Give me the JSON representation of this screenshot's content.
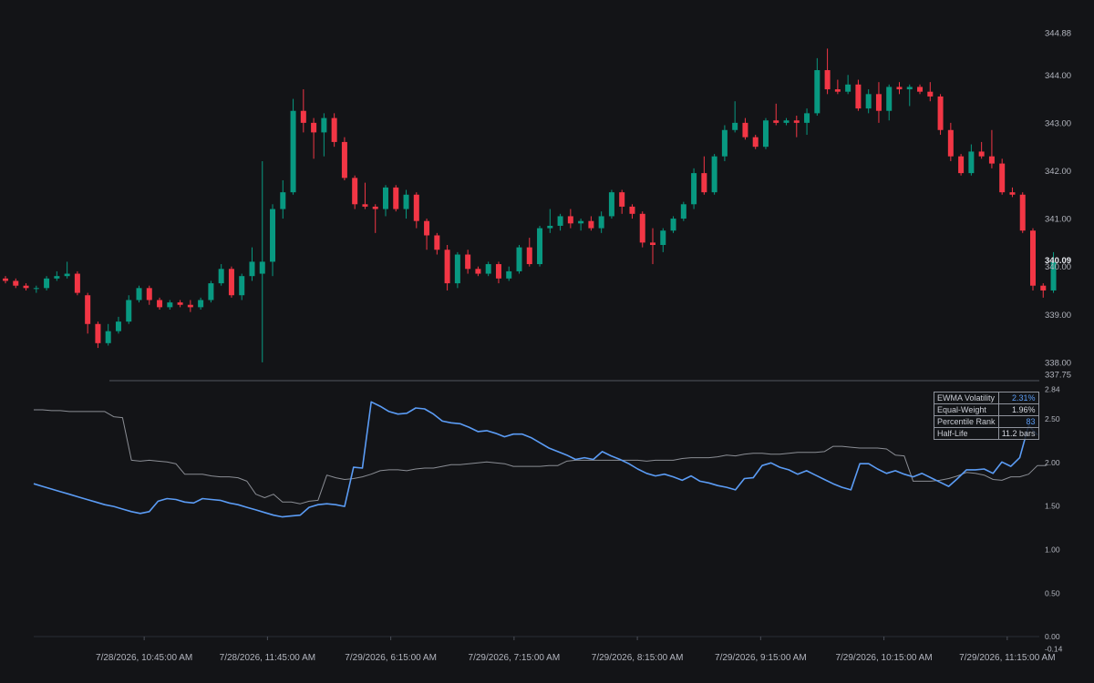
{
  "colors": {
    "background": "#131417",
    "up": "#089981",
    "down": "#f23645",
    "ewma": "#5b9cf5",
    "equal_weight": "#8a8d94",
    "separator": "#3a3e47",
    "text": "#b2b5be"
  },
  "stats": {
    "rows": [
      {
        "label": "EWMA Volatility",
        "value": "2.31%",
        "value_color": "#5b9cf5"
      },
      {
        "label": "Equal-Weight",
        "value": "1.96%",
        "value_color": "#d1d4dc"
      },
      {
        "label": "Percentile Rank",
        "value": "83",
        "value_color": "#5b9cf5"
      },
      {
        "label": "Half-Life",
        "value": "11.2 bars",
        "value_color": "#d1d4dc"
      }
    ]
  },
  "chart_data": [
    {
      "type": "candlestick",
      "ylim": [
        337.75,
        344.88
      ],
      "yticks": [
        "344.88",
        "344.00",
        "343.00",
        "342.00",
        "341.00",
        "340.00",
        "339.00",
        "338.00",
        "337.75"
      ],
      "last_price": "340.09",
      "candles": [
        [
          339.75,
          339.8,
          339.65,
          339.7
        ],
        [
          339.7,
          339.75,
          339.55,
          339.6
        ],
        [
          339.6,
          339.65,
          339.5,
          339.55
        ],
        [
          339.55,
          339.6,
          339.45,
          339.55
        ],
        [
          339.55,
          339.8,
          339.5,
          339.75
        ],
        [
          339.75,
          339.9,
          339.7,
          339.8
        ],
        [
          339.8,
          340.1,
          339.75,
          339.85
        ],
        [
          339.85,
          339.9,
          339.4,
          339.45
        ],
        [
          339.4,
          339.45,
          338.6,
          338.8
        ],
        [
          338.8,
          338.85,
          338.3,
          338.4
        ],
        [
          338.4,
          338.8,
          338.35,
          338.65
        ],
        [
          338.65,
          338.95,
          338.6,
          338.85
        ],
        [
          338.85,
          339.4,
          338.8,
          339.3
        ],
        [
          339.3,
          339.6,
          339.25,
          339.55
        ],
        [
          339.55,
          339.6,
          339.2,
          339.3
        ],
        [
          339.3,
          339.35,
          339.1,
          339.15
        ],
        [
          339.15,
          339.3,
          339.1,
          339.25
        ],
        [
          339.25,
          339.3,
          339.15,
          339.2
        ],
        [
          339.2,
          339.3,
          339.05,
          339.15
        ],
        [
          339.15,
          339.35,
          339.1,
          339.3
        ],
        [
          339.3,
          339.7,
          339.25,
          339.65
        ],
        [
          339.65,
          340.05,
          339.6,
          339.95
        ],
        [
          339.95,
          340.0,
          339.35,
          339.4
        ],
        [
          339.4,
          339.85,
          339.3,
          339.8
        ],
        [
          339.8,
          340.4,
          339.7,
          340.1
        ],
        [
          339.85,
          342.2,
          338.0,
          340.1
        ],
        [
          340.1,
          341.3,
          339.8,
          341.2
        ],
        [
          341.2,
          341.8,
          341.0,
          341.55
        ],
        [
          341.55,
          343.5,
          341.5,
          343.25
        ],
        [
          343.25,
          343.7,
          342.8,
          343.0
        ],
        [
          343.0,
          343.1,
          342.25,
          342.8
        ],
        [
          342.8,
          343.2,
          342.3,
          343.1
        ],
        [
          343.1,
          343.2,
          342.5,
          342.6
        ],
        [
          342.6,
          342.7,
          341.8,
          341.85
        ],
        [
          341.85,
          341.9,
          341.2,
          341.3
        ],
        [
          341.3,
          341.75,
          341.2,
          341.25
        ],
        [
          341.25,
          341.3,
          340.7,
          341.2
        ],
        [
          341.2,
          341.7,
          341.05,
          341.65
        ],
        [
          341.65,
          341.7,
          341.15,
          341.2
        ],
        [
          341.2,
          341.6,
          341.0,
          341.5
        ],
        [
          341.5,
          341.55,
          340.8,
          340.95
        ],
        [
          340.95,
          341.0,
          340.35,
          340.65
        ],
        [
          340.65,
          340.7,
          340.25,
          340.35
        ],
        [
          340.35,
          340.45,
          339.5,
          339.65
        ],
        [
          339.65,
          340.3,
          339.55,
          340.25
        ],
        [
          340.25,
          340.35,
          339.85,
          339.95
        ],
        [
          339.95,
          340.0,
          339.8,
          339.85
        ],
        [
          339.85,
          340.1,
          339.8,
          340.05
        ],
        [
          340.05,
          340.1,
          339.65,
          339.75
        ],
        [
          339.75,
          340.0,
          339.7,
          339.9
        ],
        [
          339.9,
          340.45,
          339.85,
          340.4
        ],
        [
          340.4,
          340.6,
          340.0,
          340.05
        ],
        [
          340.05,
          340.85,
          340.0,
          340.8
        ],
        [
          340.8,
          341.2,
          340.7,
          340.85
        ],
        [
          340.85,
          341.1,
          340.75,
          341.05
        ],
        [
          341.05,
          341.2,
          340.8,
          340.9
        ],
        [
          340.9,
          341.0,
          340.75,
          340.95
        ],
        [
          340.95,
          341.05,
          340.75,
          340.8
        ],
        [
          340.8,
          341.15,
          340.7,
          341.05
        ],
        [
          341.05,
          341.6,
          341.0,
          341.55
        ],
        [
          341.55,
          341.6,
          341.1,
          341.25
        ],
        [
          341.25,
          341.3,
          341.0,
          341.1
        ],
        [
          341.1,
          341.15,
          340.4,
          340.5
        ],
        [
          340.5,
          340.8,
          340.05,
          340.45
        ],
        [
          340.45,
          340.8,
          340.3,
          340.75
        ],
        [
          340.75,
          341.05,
          340.7,
          341.0
        ],
        [
          341.0,
          341.35,
          340.95,
          341.3
        ],
        [
          341.3,
          342.05,
          341.2,
          341.95
        ],
        [
          341.95,
          342.3,
          341.5,
          341.55
        ],
        [
          341.55,
          342.35,
          341.5,
          342.3
        ],
        [
          342.3,
          342.95,
          342.2,
          342.85
        ],
        [
          342.85,
          343.45,
          342.8,
          343.0
        ],
        [
          343.0,
          343.1,
          342.65,
          342.7
        ],
        [
          342.7,
          342.75,
          342.45,
          342.5
        ],
        [
          342.5,
          343.1,
          342.45,
          343.05
        ],
        [
          343.05,
          343.4,
          342.95,
          343.0
        ],
        [
          343.0,
          343.1,
          342.95,
          343.05
        ],
        [
          343.05,
          343.15,
          342.7,
          343.0
        ],
        [
          343.0,
          343.3,
          342.75,
          343.2
        ],
        [
          343.2,
          344.35,
          343.15,
          344.1
        ],
        [
          344.1,
          344.55,
          343.6,
          343.7
        ],
        [
          343.7,
          343.9,
          343.6,
          343.65
        ],
        [
          343.65,
          344.0,
          343.6,
          343.8
        ],
        [
          343.8,
          343.9,
          343.25,
          343.3
        ],
        [
          343.3,
          343.7,
          343.2,
          343.6
        ],
        [
          343.6,
          343.85,
          343.0,
          343.25
        ],
        [
          343.25,
          343.8,
          343.05,
          343.75
        ],
        [
          343.75,
          343.85,
          343.6,
          343.7
        ],
        [
          343.7,
          343.8,
          343.35,
          343.75
        ],
        [
          343.75,
          343.8,
          343.6,
          343.65
        ],
        [
          343.65,
          343.85,
          343.45,
          343.55
        ],
        [
          343.55,
          343.6,
          342.75,
          342.85
        ],
        [
          342.85,
          343.0,
          342.2,
          342.3
        ],
        [
          342.3,
          342.35,
          341.9,
          341.95
        ],
        [
          341.95,
          342.55,
          341.9,
          342.4
        ],
        [
          342.4,
          342.6,
          342.25,
          342.3
        ],
        [
          342.3,
          342.85,
          342.05,
          342.15
        ],
        [
          342.15,
          342.25,
          341.5,
          341.55
        ],
        [
          341.55,
          341.65,
          341.45,
          341.5
        ],
        [
          341.5,
          341.55,
          340.7,
          340.75
        ],
        [
          340.75,
          340.8,
          339.5,
          339.6
        ],
        [
          339.6,
          339.65,
          339.35,
          339.5
        ],
        [
          339.5,
          340.3,
          339.45,
          340.09
        ]
      ]
    },
    {
      "type": "line",
      "ylim": [
        -0.14,
        2.84
      ],
      "yticks": [
        "2.84",
        "2.50",
        "2.00",
        "1.50",
        "1.00",
        "0.50",
        "0.00",
        "-0.14"
      ],
      "xtick_labels": [
        "7/28/2026, 10:45:00 AM",
        "7/28/2026, 11:45:00 AM",
        "7/29/2026, 6:15:00 AM",
        "7/29/2026, 7:15:00 AM",
        "7/29/2026, 8:15:00 AM",
        "7/29/2026, 9:15:00 AM",
        "7/29/2026, 10:15:00 AM",
        "7/29/2026, 11:15:00 AM"
      ],
      "xtick_bar_index": [
        13.5,
        25.5,
        37.5,
        49.5,
        61.5,
        73.5,
        85.5,
        97.5
      ],
      "series": [
        {
          "role": "ewma",
          "values": [
            1.75,
            1.72,
            1.69,
            1.66,
            1.63,
            1.6,
            1.57,
            1.54,
            1.51,
            1.49,
            1.46,
            1.43,
            1.41,
            1.43,
            1.55,
            1.58,
            1.57,
            1.54,
            1.53,
            1.58,
            1.57,
            1.56,
            1.53,
            1.51,
            1.48,
            1.45,
            1.42,
            1.39,
            1.37,
            1.38,
            1.39,
            1.48,
            1.51,
            1.52,
            1.51,
            1.49,
            1.94,
            1.93,
            2.69,
            2.64,
            2.58,
            2.55,
            2.56,
            2.62,
            2.61,
            2.55,
            2.47,
            2.45,
            2.44,
            2.4,
            2.35,
            2.36,
            2.33,
            2.29,
            2.32,
            2.32,
            2.28,
            2.22,
            2.16,
            2.12,
            2.08,
            2.03,
            2.05,
            2.03,
            2.12,
            2.07,
            2.03,
            1.98,
            1.92,
            1.87,
            1.84,
            1.86,
            1.83,
            1.79,
            1.84,
            1.78,
            1.76,
            1.73,
            1.71,
            1.68,
            1.81,
            1.82,
            1.96,
            1.99,
            1.94,
            1.91,
            1.86,
            1.9,
            1.85,
            1.8,
            1.75,
            1.71,
            1.68,
            1.98,
            1.98,
            1.92,
            1.87,
            1.9,
            1.86,
            1.83,
            1.87,
            1.82,
            1.77,
            1.72,
            1.81,
            1.91,
            1.91,
            1.92,
            1.87,
            2.0,
            1.95,
            2.05,
            2.42,
            2.31
          ]
        },
        {
          "role": "equal_weight",
          "values": [
            2.6,
            2.6,
            2.59,
            2.59,
            2.58,
            2.58,
            2.58,
            2.58,
            2.58,
            2.52,
            2.51,
            2.02,
            2.01,
            2.02,
            2.01,
            2.0,
            1.98,
            1.86,
            1.86,
            1.86,
            1.84,
            1.83,
            1.83,
            1.82,
            1.78,
            1.63,
            1.59,
            1.63,
            1.54,
            1.54,
            1.52,
            1.55,
            1.56,
            1.85,
            1.82,
            1.8,
            1.81,
            1.83,
            1.86,
            1.9,
            1.91,
            1.91,
            1.9,
            1.92,
            1.93,
            1.93,
            1.95,
            1.97,
            1.97,
            1.98,
            1.99,
            2.0,
            1.99,
            1.98,
            1.95,
            1.95,
            1.95,
            1.95,
            1.96,
            1.96,
            2.01,
            2.02,
            2.02,
            2.02,
            2.02,
            2.02,
            2.02,
            2.02,
            2.02,
            2.01,
            2.02,
            2.02,
            2.02,
            2.04,
            2.05,
            2.05,
            2.05,
            2.06,
            2.08,
            2.07,
            2.09,
            2.1,
            2.1,
            2.09,
            2.09,
            2.1,
            2.11,
            2.11,
            2.11,
            2.12,
            2.18,
            2.18,
            2.17,
            2.16,
            2.16,
            2.16,
            2.15,
            2.08,
            2.07,
            1.78,
            1.78,
            1.78,
            1.79,
            1.81,
            1.84,
            1.88,
            1.87,
            1.85,
            1.8,
            1.79,
            1.83,
            1.83,
            1.86,
            1.96,
            1.96
          ]
        }
      ]
    }
  ]
}
